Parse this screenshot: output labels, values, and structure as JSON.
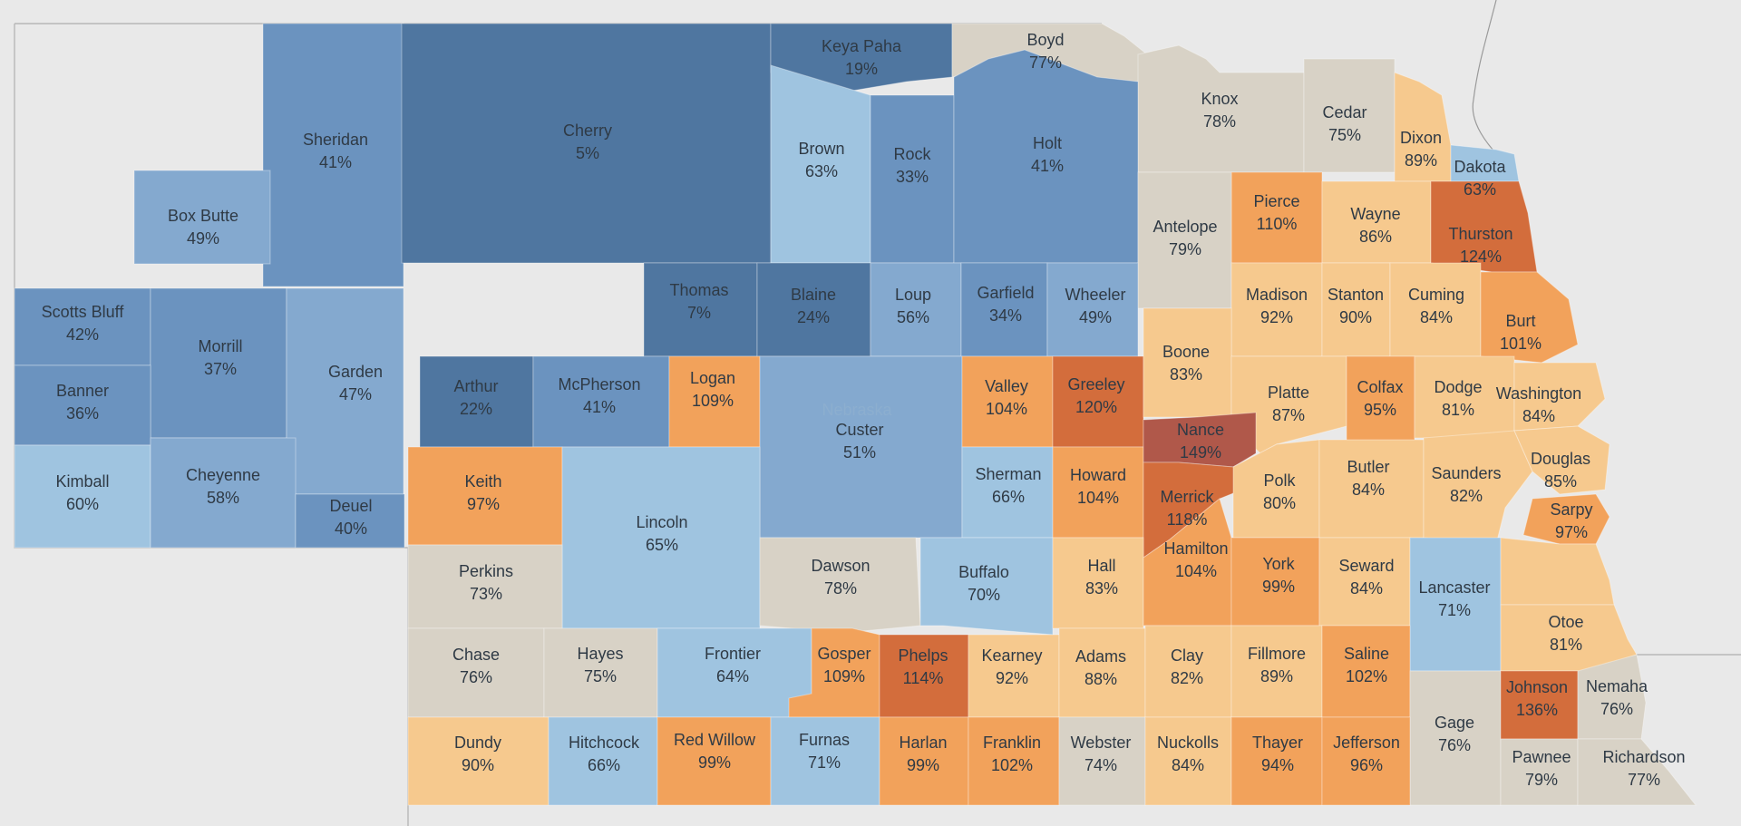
{
  "map": {
    "state_label": "Nebraska",
    "colors": {
      "background": "#e9e9e9",
      "blue_dark": "#4f76a0",
      "blue_mid": "#6b93bf",
      "blue_light": "#9fc4e0",
      "neutral": "#d8d2c6",
      "orange_light": "#f6c98e",
      "orange_mid": "#f2a25b",
      "orange_dark": "#d36d3c",
      "brown": "#b0584a"
    },
    "counties": [
      {
        "id": "sheridan",
        "name": "Sheridan",
        "value": "41%"
      },
      {
        "id": "cherry",
        "name": "Cherry",
        "value": "5%"
      },
      {
        "id": "keya-paha",
        "name": "Keya Paha",
        "value": "19%"
      },
      {
        "id": "boyd",
        "name": "Boyd",
        "value": "77%"
      },
      {
        "id": "knox",
        "name": "Knox",
        "value": "78%"
      },
      {
        "id": "cedar",
        "name": "Cedar",
        "value": "75%"
      },
      {
        "id": "dixon",
        "name": "Dixon",
        "value": "89%"
      },
      {
        "id": "dakota",
        "name": "Dakota",
        "value": "63%"
      },
      {
        "id": "box-butte",
        "name": "Box Butte",
        "value": "49%"
      },
      {
        "id": "brown",
        "name": "Brown",
        "value": "63%"
      },
      {
        "id": "rock",
        "name": "Rock",
        "value": "33%"
      },
      {
        "id": "holt",
        "name": "Holt",
        "value": "41%"
      },
      {
        "id": "pierce",
        "name": "Pierce",
        "value": "110%"
      },
      {
        "id": "wayne",
        "name": "Wayne",
        "value": "86%"
      },
      {
        "id": "thurston",
        "name": "Thurston",
        "value": "124%"
      },
      {
        "id": "antelope",
        "name": "Antelope",
        "value": "79%"
      },
      {
        "id": "scotts-bluff",
        "name": "Scotts Bluff",
        "value": "42%"
      },
      {
        "id": "morrill",
        "name": "Morrill",
        "value": "37%"
      },
      {
        "id": "thomas",
        "name": "Thomas",
        "value": "7%"
      },
      {
        "id": "blaine",
        "name": "Blaine",
        "value": "24%"
      },
      {
        "id": "loup",
        "name": "Loup",
        "value": "56%"
      },
      {
        "id": "garfield",
        "name": "Garfield",
        "value": "34%"
      },
      {
        "id": "wheeler",
        "name": "Wheeler",
        "value": "49%"
      },
      {
        "id": "madison",
        "name": "Madison",
        "value": "92%"
      },
      {
        "id": "stanton",
        "name": "Stanton",
        "value": "90%"
      },
      {
        "id": "cuming",
        "name": "Cuming",
        "value": "84%"
      },
      {
        "id": "burt",
        "name": "Burt",
        "value": "101%"
      },
      {
        "id": "banner",
        "name": "Banner",
        "value": "36%"
      },
      {
        "id": "garden",
        "name": "Garden",
        "value": "47%"
      },
      {
        "id": "arthur",
        "name": "Arthur",
        "value": "22%"
      },
      {
        "id": "mcpherson",
        "name": "McPherson",
        "value": "41%"
      },
      {
        "id": "logan",
        "name": "Logan",
        "value": "109%"
      },
      {
        "id": "custer",
        "name": "Custer",
        "value": "51%"
      },
      {
        "id": "valley",
        "name": "Valley",
        "value": "104%"
      },
      {
        "id": "greeley",
        "name": "Greeley",
        "value": "120%"
      },
      {
        "id": "boone",
        "name": "Boone",
        "value": "83%"
      },
      {
        "id": "platte",
        "name": "Platte",
        "value": "87%"
      },
      {
        "id": "colfax",
        "name": "Colfax",
        "value": "95%"
      },
      {
        "id": "dodge",
        "name": "Dodge",
        "value": "81%"
      },
      {
        "id": "washington",
        "name": "Washington",
        "value": "84%"
      },
      {
        "id": "kimball",
        "name": "Kimball",
        "value": "60%"
      },
      {
        "id": "cheyenne",
        "name": "Cheyenne",
        "value": "58%"
      },
      {
        "id": "deuel",
        "name": "Deuel",
        "value": "40%"
      },
      {
        "id": "keith",
        "name": "Keith",
        "value": "97%"
      },
      {
        "id": "lincoln",
        "name": "Lincoln",
        "value": "65%"
      },
      {
        "id": "sherman",
        "name": "Sherman",
        "value": "66%"
      },
      {
        "id": "howard",
        "name": "Howard",
        "value": "104%"
      },
      {
        "id": "nance",
        "name": "Nance",
        "value": "149%"
      },
      {
        "id": "merrick",
        "name": "Merrick",
        "value": "118%"
      },
      {
        "id": "polk",
        "name": "Polk",
        "value": "80%"
      },
      {
        "id": "butler",
        "name": "Butler",
        "value": "84%"
      },
      {
        "id": "saunders",
        "name": "Saunders",
        "value": "82%"
      },
      {
        "id": "douglas",
        "name": "Douglas",
        "value": "85%"
      },
      {
        "id": "sarpy",
        "name": "Sarpy",
        "value": "97%"
      },
      {
        "id": "perkins",
        "name": "Perkins",
        "value": "73%"
      },
      {
        "id": "dawson",
        "name": "Dawson",
        "value": "78%"
      },
      {
        "id": "buffalo",
        "name": "Buffalo",
        "value": "70%"
      },
      {
        "id": "hall",
        "name": "Hall",
        "value": "83%"
      },
      {
        "id": "hamilton",
        "name": "Hamilton",
        "value": "104%"
      },
      {
        "id": "york",
        "name": "York",
        "value": "99%"
      },
      {
        "id": "seward",
        "name": "Seward",
        "value": "84%"
      },
      {
        "id": "lancaster",
        "name": "Lancaster",
        "value": "71%"
      },
      {
        "id": "cass",
        "name": "",
        "value": ""
      },
      {
        "id": "otoe",
        "name": "Otoe",
        "value": "81%"
      },
      {
        "id": "chase",
        "name": "Chase",
        "value": "76%"
      },
      {
        "id": "hayes",
        "name": "Hayes",
        "value": "75%"
      },
      {
        "id": "frontier",
        "name": "Frontier",
        "value": "64%"
      },
      {
        "id": "gosper",
        "name": "Gosper",
        "value": "109%"
      },
      {
        "id": "phelps",
        "name": "Phelps",
        "value": "114%"
      },
      {
        "id": "kearney",
        "name": "Kearney",
        "value": "92%"
      },
      {
        "id": "adams",
        "name": "Adams",
        "value": "88%"
      },
      {
        "id": "clay",
        "name": "Clay",
        "value": "82%"
      },
      {
        "id": "fillmore",
        "name": "Fillmore",
        "value": "89%"
      },
      {
        "id": "saline",
        "name": "Saline",
        "value": "102%"
      },
      {
        "id": "gage",
        "name": "Gage",
        "value": "76%"
      },
      {
        "id": "johnson",
        "name": "Johnson",
        "value": "136%"
      },
      {
        "id": "nemaha",
        "name": "Nemaha",
        "value": "76%"
      },
      {
        "id": "dundy",
        "name": "Dundy",
        "value": "90%"
      },
      {
        "id": "hitchcock",
        "name": "Hitchcock",
        "value": "66%"
      },
      {
        "id": "red-willow",
        "name": "Red Willow",
        "value": "99%"
      },
      {
        "id": "furnas",
        "name": "Furnas",
        "value": "71%"
      },
      {
        "id": "harlan",
        "name": "Harlan",
        "value": "99%"
      },
      {
        "id": "franklin",
        "name": "Franklin",
        "value": "102%"
      },
      {
        "id": "webster",
        "name": "Webster",
        "value": "74%"
      },
      {
        "id": "nuckolls",
        "name": "Nuckolls",
        "value": "84%"
      },
      {
        "id": "thayer",
        "name": "Thayer",
        "value": "94%"
      },
      {
        "id": "jefferson",
        "name": "Jefferson",
        "value": "96%"
      },
      {
        "id": "pawnee",
        "name": "Pawnee",
        "value": "79%"
      },
      {
        "id": "richardson",
        "name": "Richardson",
        "value": "77%"
      }
    ]
  }
}
